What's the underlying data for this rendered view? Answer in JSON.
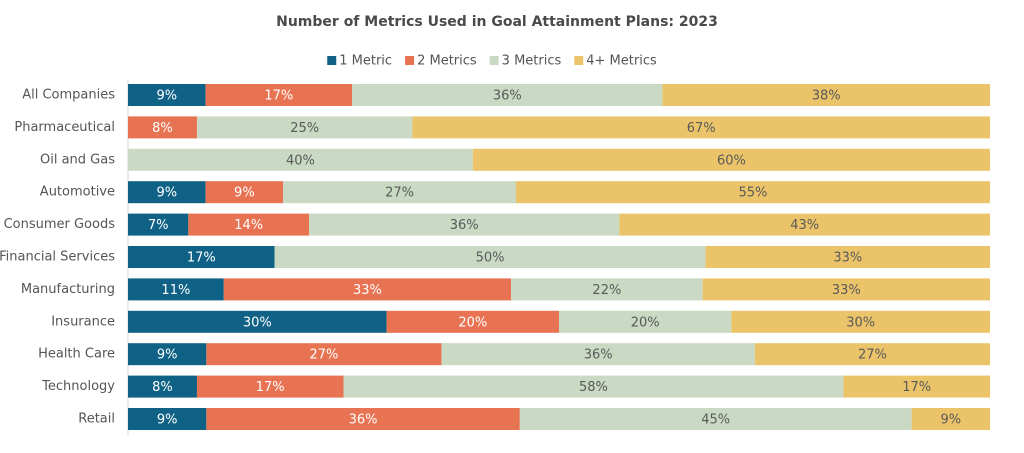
{
  "chart_data": {
    "type": "bar",
    "orientation": "horizontal",
    "stacked": true,
    "title": "Number of Metrics Used in Goal Attainment Plans: 2023",
    "categories": [
      "All Companies",
      "Pharmaceutical",
      "Oil and Gas",
      "Automotive",
      "Consumer Goods",
      "Financial Services",
      "Manufacturing",
      "Insurance",
      "Health Care",
      "Technology",
      "Retail"
    ],
    "series": [
      {
        "name": "1 Metric",
        "color": "#0f6286",
        "label_color": "#ffffff",
        "values": [
          9,
          null,
          null,
          9,
          7,
          17,
          11,
          30,
          9,
          8,
          9
        ],
        "value_labels": [
          "9%",
          null,
          null,
          "9%",
          "7%",
          "17%",
          "11%",
          "30%",
          "9%",
          "8%",
          "9%"
        ]
      },
      {
        "name": "2 Metrics",
        "color": "#e87353",
        "label_color": "#ffffff",
        "values": [
          17,
          8,
          null,
          9,
          14,
          null,
          33,
          20,
          27,
          17,
          36
        ],
        "value_labels": [
          "17%",
          "8%",
          null,
          "9%",
          "14%",
          null,
          "33%",
          "20%",
          "27%",
          "17%",
          "36%"
        ]
      },
      {
        "name": "3 Metrics",
        "color": "#c9d9c3",
        "label_color": "#5a5a5a",
        "values": [
          36,
          25,
          40,
          27,
          36,
          50,
          22,
          20,
          36,
          58,
          45
        ],
        "value_labels": [
          "36%",
          "25%",
          "40%",
          "27%",
          "36%",
          "50%",
          "22%",
          "20%",
          "36%",
          "58%",
          "45%"
        ]
      },
      {
        "name": "4+ Metrics",
        "color": "#ebc469",
        "label_color": "#5a5a5a",
        "values": [
          38,
          67,
          60,
          55,
          43,
          33,
          33,
          30,
          27,
          17,
          9
        ],
        "value_labels": [
          "38%",
          "67%",
          "60%",
          "55%",
          "43%",
          "33%",
          "33%",
          "30%",
          "27%",
          "17%",
          "9%"
        ]
      }
    ]
  }
}
